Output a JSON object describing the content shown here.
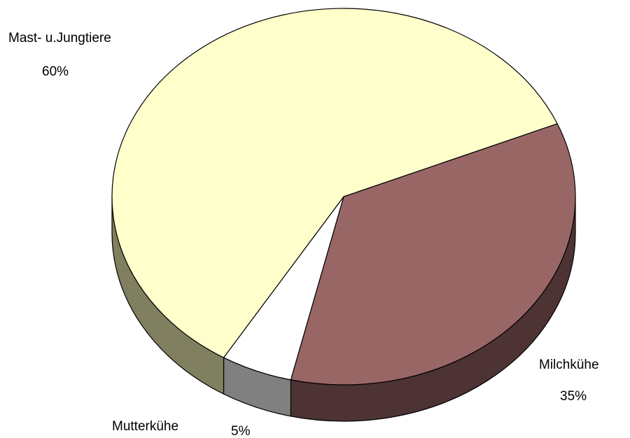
{
  "chart_data": {
    "type": "pie",
    "categories": [
      "Milchkühe",
      "Mutterkühe",
      "Mast- u.Jungtiere"
    ],
    "values": [
      35,
      5,
      60
    ],
    "value_labels": [
      "35%",
      "5%",
      "60%"
    ],
    "colors": [
      "#996666",
      "#ffffff",
      "#ffffcc"
    ],
    "side_colors": [
      "#4d3333",
      "#808080",
      "#808060"
    ]
  }
}
